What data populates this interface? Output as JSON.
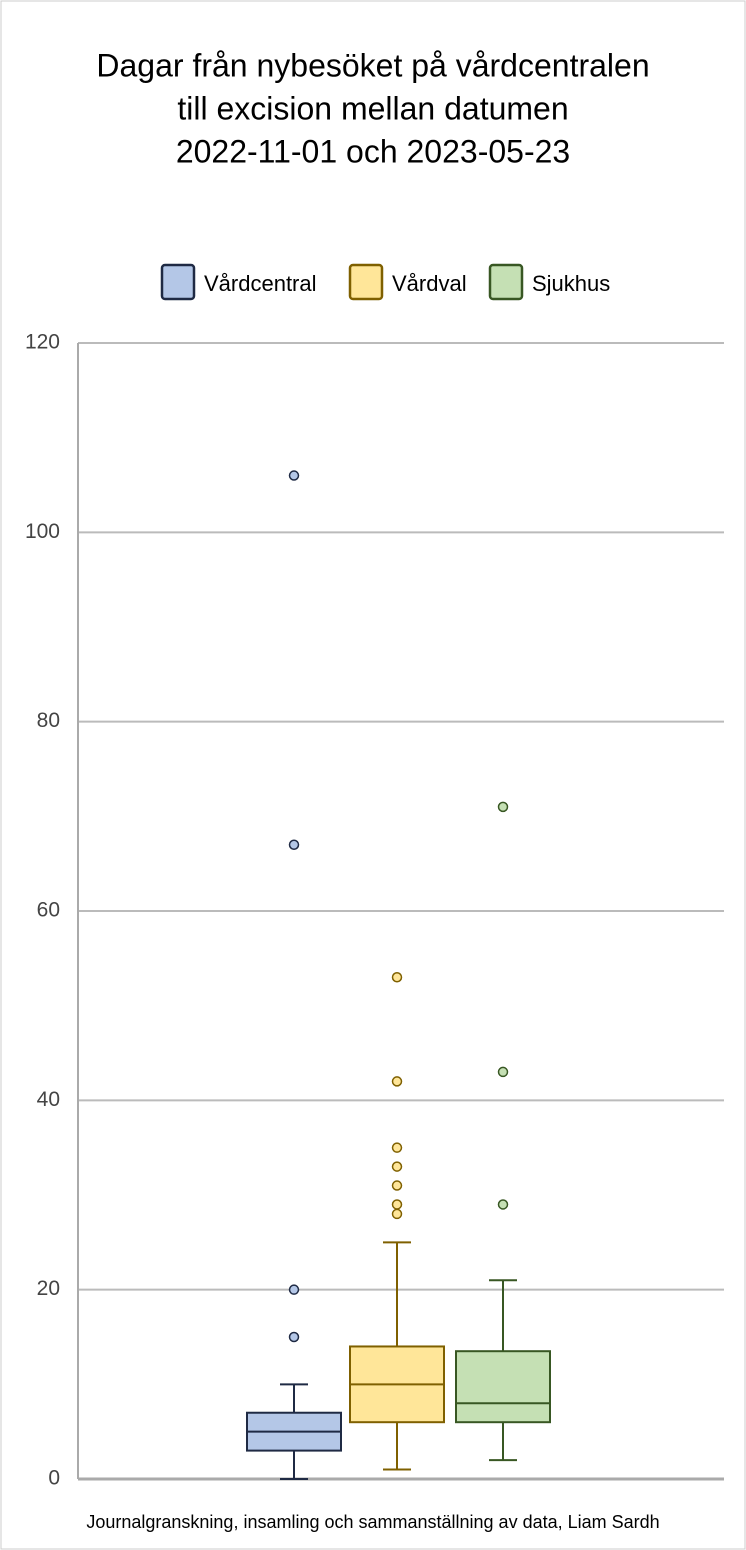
{
  "chart_data": {
    "type": "box",
    "title": [
      "Dagar från nybesöket på vårdcentralen",
      "till excision mellan datumen",
      "2022-11-01 och 2023-05-23"
    ],
    "source": "Journalgranskning, insamling och sammanställning av data, Liam Sardh",
    "ylim": [
      0,
      120
    ],
    "yticks": [
      0,
      20,
      40,
      60,
      80,
      100,
      120
    ],
    "grid": true,
    "series": [
      {
        "name": "Vårdcentral",
        "color": "#b4c7e7",
        "stroke": "#1f2a44",
        "min": 0,
        "q1": 3,
        "median": 5,
        "q3": 7,
        "max": 10,
        "outliers": [
          15,
          20,
          67,
          106
        ]
      },
      {
        "name": "Vårdval",
        "color": "#ffe699",
        "stroke": "#7f6000",
        "min": 1,
        "q1": 6,
        "median": 10,
        "q3": 14,
        "max": 25,
        "outliers": [
          28,
          29,
          31,
          33,
          35,
          42,
          53
        ]
      },
      {
        "name": "Sjukhus",
        "color": "#c5e0b4",
        "stroke": "#385723",
        "min": 2,
        "q1": 6,
        "median": 8,
        "q3": 13.5,
        "max": 21,
        "outliers": [
          29,
          43,
          71
        ]
      }
    ]
  }
}
